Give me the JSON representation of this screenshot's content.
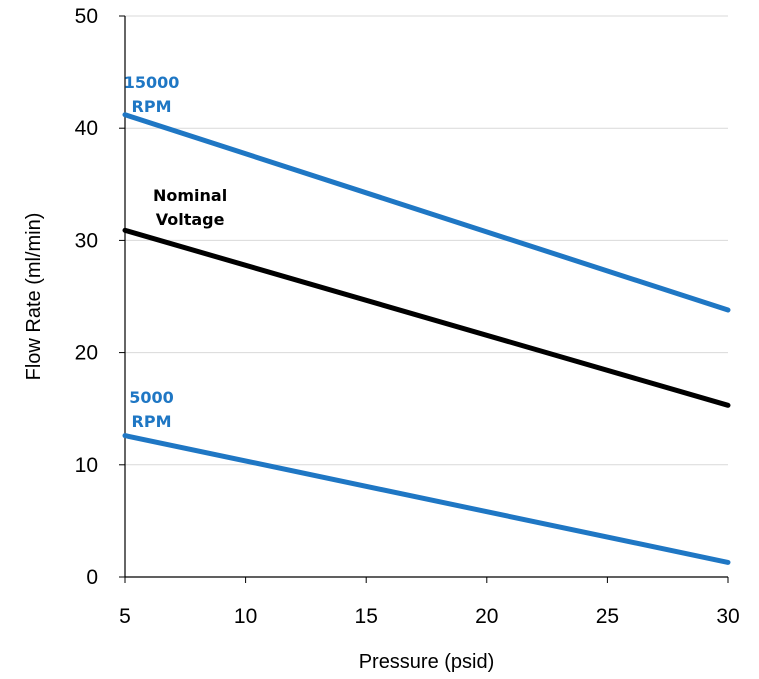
{
  "chart_data": {
    "type": "line",
    "xlabel": "Pressure (psid)",
    "ylabel": "Flow Rate (ml/min)",
    "xlim": [
      5,
      30
    ],
    "ylim": [
      0,
      50
    ],
    "xticks": [
      "5",
      "10",
      "15",
      "20",
      "25",
      "30"
    ],
    "yticks": [
      "0",
      "10",
      "20",
      "30",
      "40",
      "50"
    ],
    "grid": "horizontal",
    "legend": "none",
    "series": [
      {
        "color": "#1f77c4",
        "x": [
          5,
          30
        ],
        "values": [
          41.2,
          23.8
        ]
      },
      {
        "color": "#000000",
        "x": [
          5,
          30
        ],
        "values": [
          30.9,
          15.3
        ]
      },
      {
        "color": "#1f77c4",
        "x": [
          5,
          30
        ],
        "values": [
          12.6,
          1.3
        ]
      }
    ],
    "annotations": [
      {
        "lines": [
          "15000",
          "RPM"
        ],
        "color": "#1f77c4",
        "x": 6.1,
        "y": 43.6
      },
      {
        "lines": [
          "Nominal",
          "Voltage"
        ],
        "color": "#000000",
        "x": 7.7,
        "y": 33.5
      },
      {
        "lines": [
          "5000",
          "RPM"
        ],
        "color": "#1f77c4",
        "x": 6.1,
        "y": 15.5
      }
    ]
  }
}
